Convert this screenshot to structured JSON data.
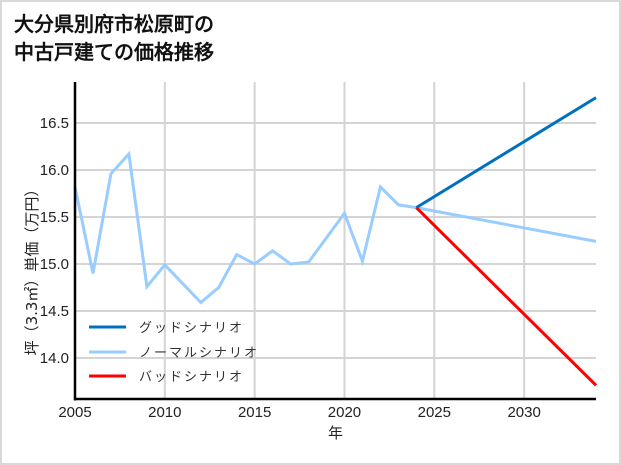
{
  "title_lines": [
    "大分県別府市松原町の",
    "中古戸建ての価格推移"
  ],
  "chart_data": {
    "type": "line",
    "title": "大分県別府市松原町の中古戸建ての価格推移",
    "xlabel": "年",
    "ylabel": "坪（3.3㎡）単価（万円）",
    "xlim": [
      2005,
      2034
    ],
    "ylim": [
      13.6,
      16.95
    ],
    "xticks": [
      2005,
      2010,
      2015,
      2020,
      2025,
      2030
    ],
    "yticks": [
      14.0,
      14.5,
      15.0,
      15.5,
      16.0,
      16.5
    ],
    "ytick_labels": [
      "14.0",
      "14.5",
      "15.0",
      "15.5",
      "16.0",
      "16.5"
    ],
    "grid": true,
    "legend_position": "lower left",
    "series": [
      {
        "name": "グッドシナリオ",
        "color": "#0070c0",
        "x": [
          2024,
          2034
        ],
        "values": [
          15.6,
          16.77
        ]
      },
      {
        "name": "ノーマルシナリオ",
        "color": "#99ccff",
        "x": [
          2005,
          2006,
          2007,
          2008,
          2009,
          2010,
          2011,
          2012,
          2013,
          2014,
          2015,
          2016,
          2017,
          2018,
          2019,
          2020,
          2021,
          2022,
          2023,
          2024,
          2034
        ],
        "values": [
          15.82,
          14.9,
          15.96,
          16.17,
          14.76,
          14.99,
          14.79,
          14.59,
          14.75,
          15.1,
          15.0,
          15.14,
          15.0,
          15.02,
          15.28,
          15.54,
          15.03,
          15.82,
          15.63,
          15.6,
          15.24
        ]
      },
      {
        "name": "バッドシナリオ",
        "color": "#ff0000",
        "x": [
          2024,
          2034
        ],
        "values": [
          15.6,
          13.71
        ]
      }
    ]
  }
}
